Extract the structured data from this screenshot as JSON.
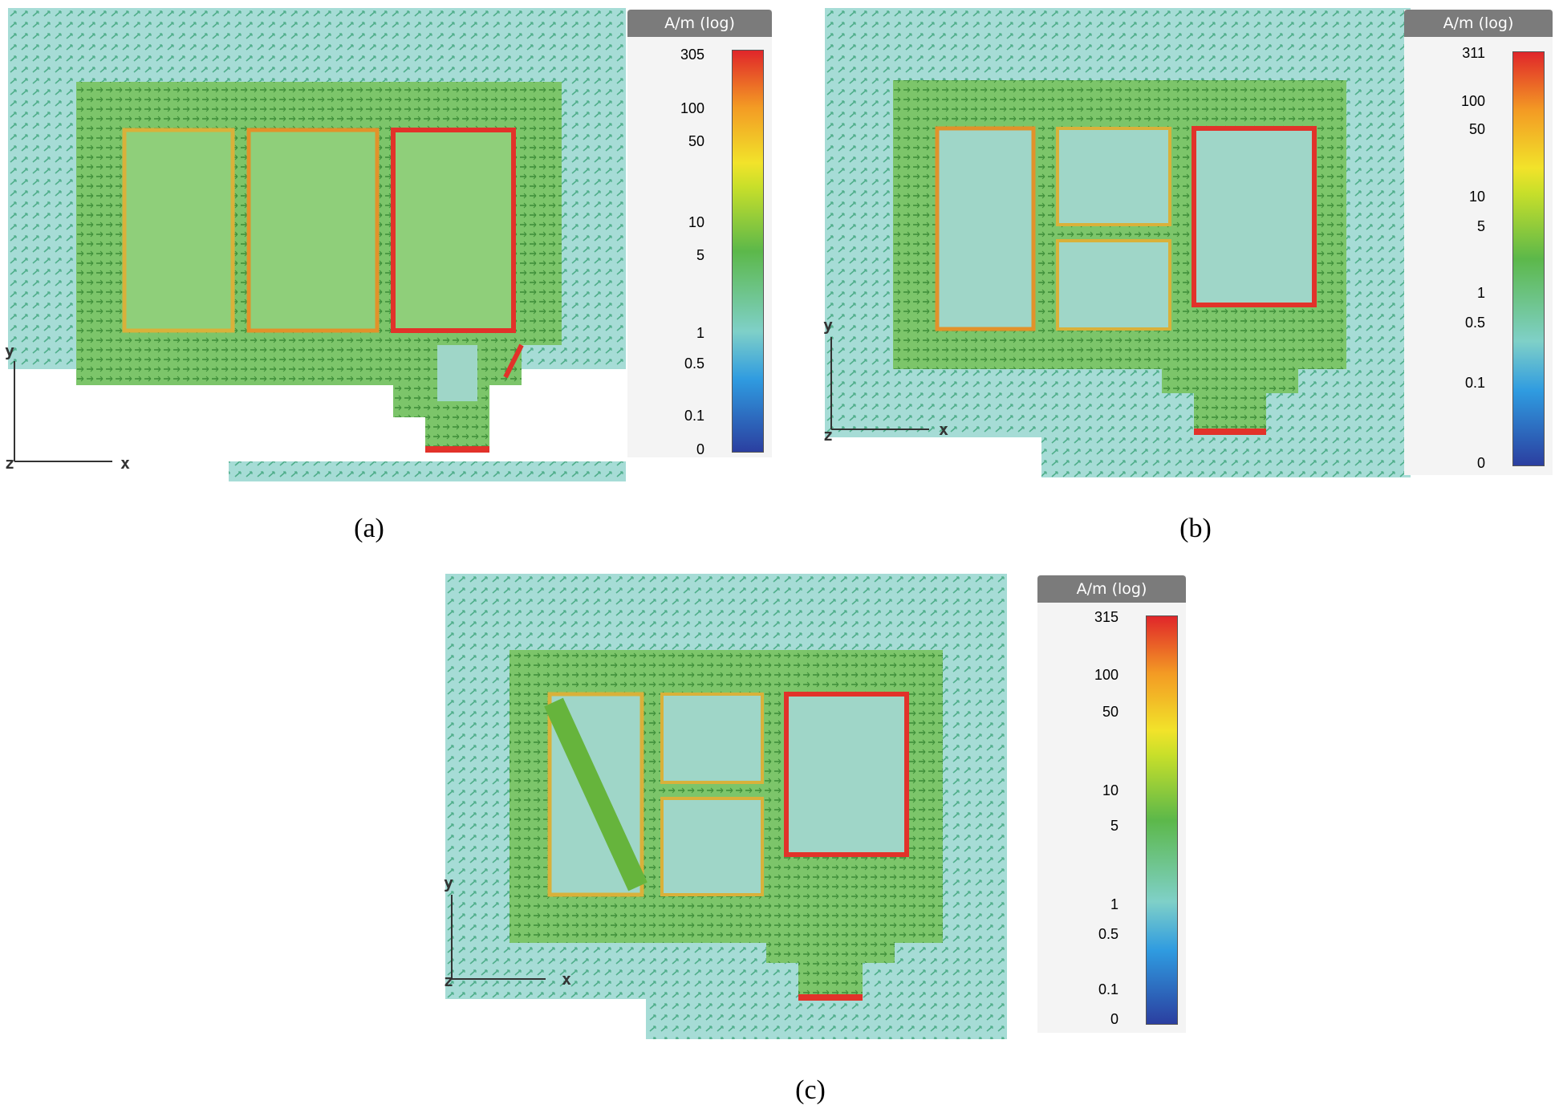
{
  "panels": [
    {
      "id": "a",
      "caption": "(a)",
      "unit_label": "A/m (log)",
      "ticks": [
        "305",
        "100",
        "50",
        "10",
        "5",
        "1",
        "0.5",
        "0.1",
        "0"
      ],
      "axes": {
        "y": "y",
        "x": "x",
        "z": "z"
      }
    },
    {
      "id": "b",
      "caption": "(b)",
      "unit_label": "A/m (log)",
      "ticks": [
        "311",
        "100",
        "50",
        "10",
        "5",
        "1",
        "0.5",
        "0.1",
        "0"
      ],
      "axes": {
        "y": "y",
        "x": "x",
        "z": "z"
      }
    },
    {
      "id": "c",
      "caption": "(c)",
      "unit_label": "A/m (log)",
      "ticks": [
        "315",
        "100",
        "50",
        "10",
        "5",
        "1",
        "0.5",
        "0.1",
        "0"
      ],
      "axes": {
        "y": "y",
        "x": "x",
        "z": "z"
      }
    }
  ],
  "colors": {
    "background_field": "#9ed9d9",
    "arrow_field": "#4fae8a",
    "trace_green": "#66b43c",
    "hot_red": "#e2322a",
    "hot_orange": "#f08a24",
    "colorbar_stops": [
      "#2b3fa0",
      "#2f9be0",
      "#7fd0c8",
      "#5cb84a",
      "#f2e32a",
      "#f39a24",
      "#e0262a"
    ]
  }
}
